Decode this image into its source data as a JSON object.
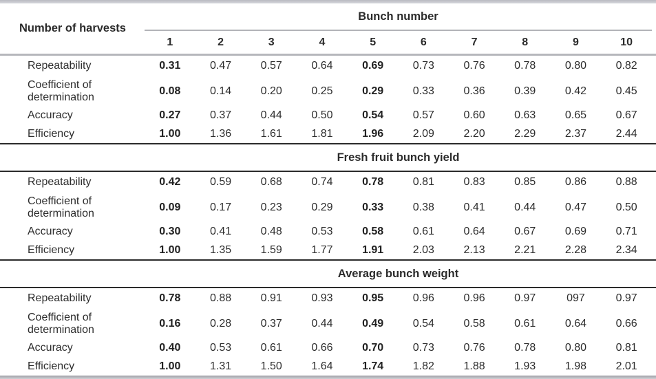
{
  "colors": {
    "text": "#2b2b2b",
    "gray_rule": "#b6b7bc",
    "dark_rule": "#2b2b2b",
    "background": "#ffffff"
  },
  "table": {
    "corner_label": "Number of harvests",
    "span_header": "Bunch number",
    "columns": [
      "1",
      "2",
      "3",
      "4",
      "5",
      "6",
      "7",
      "8",
      "9",
      "10"
    ],
    "bold_value_columns": [
      0,
      4
    ],
    "sections": [
      {
        "title": "",
        "rows": [
          {
            "label": "Repeatability",
            "values": [
              "0.31",
              "0.47",
              "0.57",
              "0.64",
              "0.69",
              "0.73",
              "0.76",
              "0.78",
              "0.80",
              "0.82"
            ]
          },
          {
            "label": "Coefficient of determination",
            "values": [
              "0.08",
              "0.14",
              "0.20",
              "0.25",
              "0.29",
              "0.33",
              "0.36",
              "0.39",
              "0.42",
              "0.45"
            ]
          },
          {
            "label": "Accuracy",
            "values": [
              "0.27",
              "0.37",
              "0.44",
              "0.50",
              "0.54",
              "0.57",
              "0.60",
              "0.63",
              "0.65",
              "0.67"
            ]
          },
          {
            "label": "Efficiency",
            "values": [
              "1.00",
              "1.36",
              "1.61",
              "1.81",
              "1.96",
              "2.09",
              "2.20",
              "2.29",
              "2.37",
              "2.44"
            ]
          }
        ]
      },
      {
        "title": "Fresh fruit bunch yield",
        "rows": [
          {
            "label": "Repeatability",
            "values": [
              "0.42",
              "0.59",
              "0.68",
              "0.74",
              "0.78",
              "0.81",
              "0.83",
              "0.85",
              "0.86",
              "0.88"
            ]
          },
          {
            "label": "Coefficient of determination",
            "values": [
              "0.09",
              "0.17",
              "0.23",
              "0.29",
              "0.33",
              "0.38",
              "0.41",
              "0.44",
              "0.47",
              "0.50"
            ]
          },
          {
            "label": "Accuracy",
            "values": [
              "0.30",
              "0.41",
              "0.48",
              "0.53",
              "0.58",
              "0.61",
              "0.64",
              "0.67",
              "0.69",
              "0.71"
            ]
          },
          {
            "label": "Efficiency",
            "values": [
              "1.00",
              "1.35",
              "1.59",
              "1.77",
              "1.91",
              "2.03",
              "2.13",
              "2.21",
              "2.28",
              "2.34"
            ]
          }
        ]
      },
      {
        "title": "Average bunch weight",
        "rows": [
          {
            "label": "Repeatability",
            "values": [
              "0.78",
              "0.88",
              "0.91",
              "0.93",
              "0.95",
              "0.96",
              "0.96",
              "0.97",
              "097",
              "0.97"
            ]
          },
          {
            "label": "Coefficient of determination",
            "values": [
              "0.16",
              "0.28",
              "0.37",
              "0.44",
              "0.49",
              "0.54",
              "0.58",
              "0.61",
              "0.64",
              "0.66"
            ]
          },
          {
            "label": "Accuracy",
            "values": [
              "0.40",
              "0.53",
              "0.61",
              "0.66",
              "0.70",
              "0.73",
              "0.76",
              "0.78",
              "0.80",
              "0.81"
            ]
          },
          {
            "label": "Efficiency",
            "values": [
              "1.00",
              "1.31",
              "1.50",
              "1.64",
              "1.74",
              "1.82",
              "1.88",
              "1.93",
              "1.98",
              "2.01"
            ]
          }
        ]
      }
    ]
  }
}
